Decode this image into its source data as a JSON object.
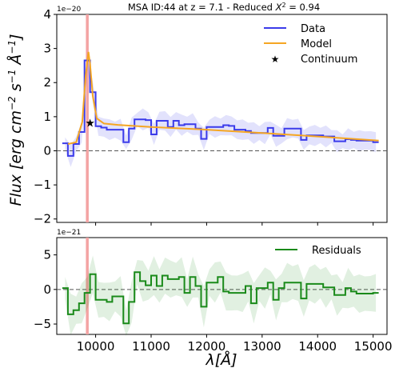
{
  "chart_data": [
    {
      "type": "line",
      "title": "MSA ID:44 at z = 7.1 - Reduced",
      "title_symbol": "X",
      "title_tail": "= 0.94",
      "ylabel": "Flux [erg cm",
      "ylabel_sup1": "−2",
      "ylabel_mid": " s",
      "ylabel_sup2": "−1",
      "ylabel_tail": " Å",
      "ylabel_sup3": "−1",
      "ylabel_end": "]",
      "offset_text": "1e−20",
      "xlim": [
        9300,
        15250
      ],
      "ylim": [
        -2.1,
        4.0
      ],
      "xticks": [
        10000,
        11000,
        12000,
        13000,
        14000,
        15000
      ],
      "yticks": [
        -2,
        -1,
        0,
        1,
        2,
        3,
        4
      ],
      "ytick_labels": [
        "−2",
        "−1",
        "0",
        "1",
        "2",
        "3",
        "4"
      ],
      "zero_line": true,
      "vline_x": 9850,
      "legend_position": "upper right",
      "series": [
        {
          "name": "Data",
          "style": "step",
          "color": "#3b3bea",
          "x": [
            9450,
            9550,
            9650,
            9750,
            9850,
            9950,
            10050,
            10150,
            10250,
            10350,
            10450,
            10550,
            10650,
            10750,
            10850,
            10950,
            11050,
            11150,
            11250,
            11350,
            11450,
            11550,
            11650,
            11750,
            11850,
            11950,
            12050,
            12150,
            12250,
            12350,
            12450,
            12550,
            12650,
            12750,
            12850,
            12950,
            13050,
            13150,
            13250,
            13350,
            13450,
            13550,
            13650,
            13750,
            13850,
            13950,
            14050,
            14150,
            14250,
            14350,
            14450,
            14550,
            14650,
            14750,
            14850,
            14950,
            15050
          ],
          "y": [
            0.22,
            -0.15,
            0.2,
            0.55,
            2.65,
            1.72,
            0.72,
            0.68,
            0.62,
            0.62,
            0.62,
            0.25,
            0.65,
            0.92,
            0.92,
            0.9,
            0.48,
            0.88,
            0.88,
            0.7,
            0.88,
            0.75,
            0.78,
            0.78,
            0.65,
            0.35,
            0.7,
            0.7,
            0.7,
            0.75,
            0.73,
            0.62,
            0.62,
            0.58,
            0.52,
            0.52,
            0.52,
            0.67,
            0.44,
            0.44,
            0.65,
            0.65,
            0.65,
            0.32,
            0.45,
            0.45,
            0.45,
            0.42,
            0.42,
            0.28,
            0.28,
            0.34,
            0.32,
            0.3,
            0.3,
            0.3,
            0.25
          ],
          "err": 0.25
        },
        {
          "name": "Model",
          "style": "line",
          "color": "#f5a623",
          "x": [
            9500,
            9650,
            9760,
            9820,
            9870,
            9900,
            9950,
            10020,
            10150,
            10400,
            11000,
            12000,
            13000,
            14000,
            15100
          ],
          "y": [
            0.2,
            0.25,
            0.85,
            2.2,
            2.9,
            2.55,
            1.6,
            0.95,
            0.8,
            0.76,
            0.7,
            0.62,
            0.52,
            0.42,
            0.3
          ]
        },
        {
          "name": "Continuum",
          "style": "marker",
          "color": "#000000",
          "x": [
            9900
          ],
          "y": [
            0.82
          ]
        }
      ]
    },
    {
      "type": "line",
      "offset_text": "1e−21",
      "xlabel": "λ[Å]",
      "xlim": [
        9300,
        15250
      ],
      "ylim": [
        -6.5,
        7.5
      ],
      "xticks": [
        10000,
        11000,
        12000,
        13000,
        14000,
        15000
      ],
      "xtick_labels": [
        "10000",
        "11000",
        "12000",
        "13000",
        "14000",
        "15000"
      ],
      "yticks": [
        -5,
        0,
        5
      ],
      "ytick_labels": [
        "−5",
        "0",
        "5"
      ],
      "zero_line": true,
      "vline_x": 9850,
      "legend_position": "upper right",
      "series": [
        {
          "name": "Residuals",
          "style": "step",
          "color": "#1a8a1a",
          "x": [
            9450,
            9550,
            9650,
            9750,
            9850,
            9950,
            10050,
            10150,
            10250,
            10350,
            10450,
            10550,
            10650,
            10750,
            10850,
            10950,
            11050,
            11150,
            11250,
            11350,
            11450,
            11550,
            11650,
            11750,
            11850,
            11950,
            12050,
            12150,
            12250,
            12350,
            12450,
            12550,
            12650,
            12750,
            12850,
            12950,
            13050,
            13150,
            13250,
            13350,
            13450,
            13550,
            13650,
            13750,
            13850,
            13950,
            14050,
            14150,
            14250,
            14350,
            14450,
            14550,
            14650,
            14750,
            14850,
            14950,
            15050
          ],
          "y": [
            0.2,
            -3.6,
            -3.0,
            -2.0,
            -0.5,
            2.2,
            -1.5,
            -1.5,
            -1.8,
            -1.0,
            -1.0,
            -4.9,
            -1.8,
            2.5,
            1.2,
            0.6,
            2.0,
            0.5,
            2.0,
            1.5,
            1.5,
            1.8,
            -0.5,
            1.8,
            0.5,
            -2.5,
            1.0,
            1.0,
            1.8,
            -0.3,
            -0.5,
            -0.5,
            -0.5,
            0.5,
            -2.0,
            0.2,
            0.2,
            1.0,
            -1.5,
            0.2,
            1.0,
            1.0,
            1.0,
            -1.3,
            0.8,
            0.8,
            0.8,
            0.3,
            0.3,
            -0.8,
            -0.8,
            0.2,
            -0.3,
            -0.6,
            -0.6,
            -0.6,
            -0.5
          ],
          "err": 2.3
        }
      ]
    }
  ]
}
